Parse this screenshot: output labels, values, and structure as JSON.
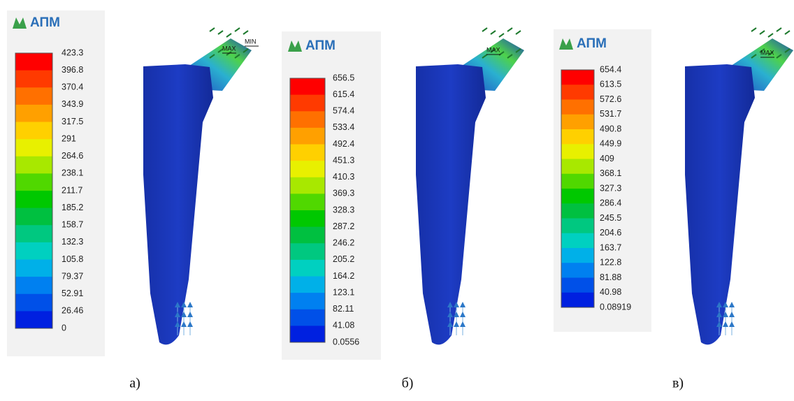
{
  "panels": [
    {
      "logo": "АПМ",
      "scale_labels": [
        "423.3",
        "396.8",
        "370.4",
        "343.9",
        "317.5",
        "291",
        "264.6",
        "238.1",
        "211.7",
        "185.2",
        "158.7",
        "132.3",
        "105.8",
        "79.37",
        "52.91",
        "26.46",
        "0"
      ],
      "markers": [
        "MAX",
        "MIN"
      ],
      "caption": "а)"
    },
    {
      "logo": "АПМ",
      "scale_labels": [
        "656.5",
        "615.4",
        "574.4",
        "533.4",
        "492.4",
        "451.3",
        "410.3",
        "369.3",
        "328.3",
        "287.2",
        "246.2",
        "205.2",
        "164.2",
        "123.1",
        "82.11",
        "41.08",
        "0.0556"
      ],
      "markers": [
        "MAX"
      ],
      "caption": "б)"
    },
    {
      "logo": "АПМ",
      "scale_labels": [
        "654.4",
        "613.5",
        "572.6",
        "531.7",
        "490.8",
        "449.9",
        "409",
        "368.1",
        "327.3",
        "286.4",
        "245.5",
        "204.6",
        "163.7",
        "122.8",
        "81.88",
        "40.98",
        "0.08919"
      ],
      "markers": [
        "MAX"
      ],
      "caption": "в)"
    }
  ]
}
